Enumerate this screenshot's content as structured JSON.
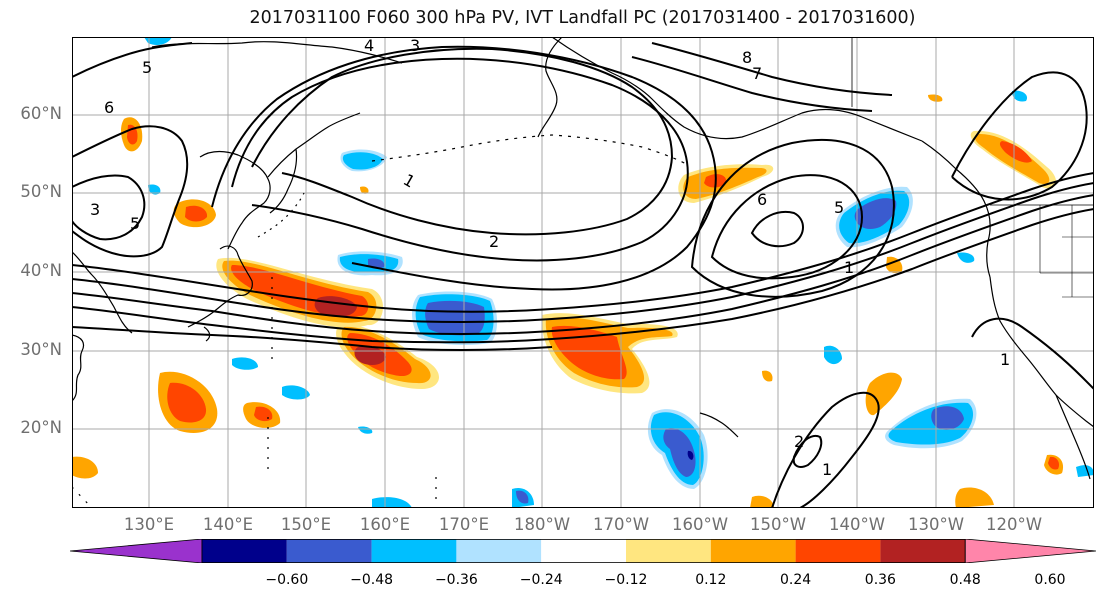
{
  "title": "2017031100 F060 300 hPa PV, IVT Landfall PC (2017031400 - 2017031600)",
  "lat_labels": [
    "60°N",
    "50°N",
    "40°N",
    "30°N",
    "20°N"
  ],
  "lon_labels": [
    "130°E",
    "140°E",
    "150°E",
    "160°E",
    "170°E",
    "180°W",
    "170°W",
    "160°W",
    "150°W",
    "140°W",
    "130°W",
    "120°W"
  ],
  "colorbar": {
    "tick_labels": [
      "−0.60",
      "−0.48",
      "−0.36",
      "−0.24",
      "−0.12",
      "0.12",
      "0.24",
      "0.36",
      "0.48",
      "0.60"
    ],
    "colors": [
      "#9a32cd",
      "#00008b",
      "#3a5bcf",
      "#00bfff",
      "#b0e2ff",
      "#ffffff",
      "#ffe680",
      "#ffa500",
      "#ff4500",
      "#b22222",
      "#ff85aa"
    ]
  },
  "pv_contour_labels": [
    "1",
    "2",
    "3",
    "4",
    "5",
    "6",
    "7",
    "8"
  ],
  "colors": {
    "grid": "#a8a8a8",
    "contour": "#000000",
    "coast": "#000000",
    "tick_text": "#6f6f6f"
  }
}
